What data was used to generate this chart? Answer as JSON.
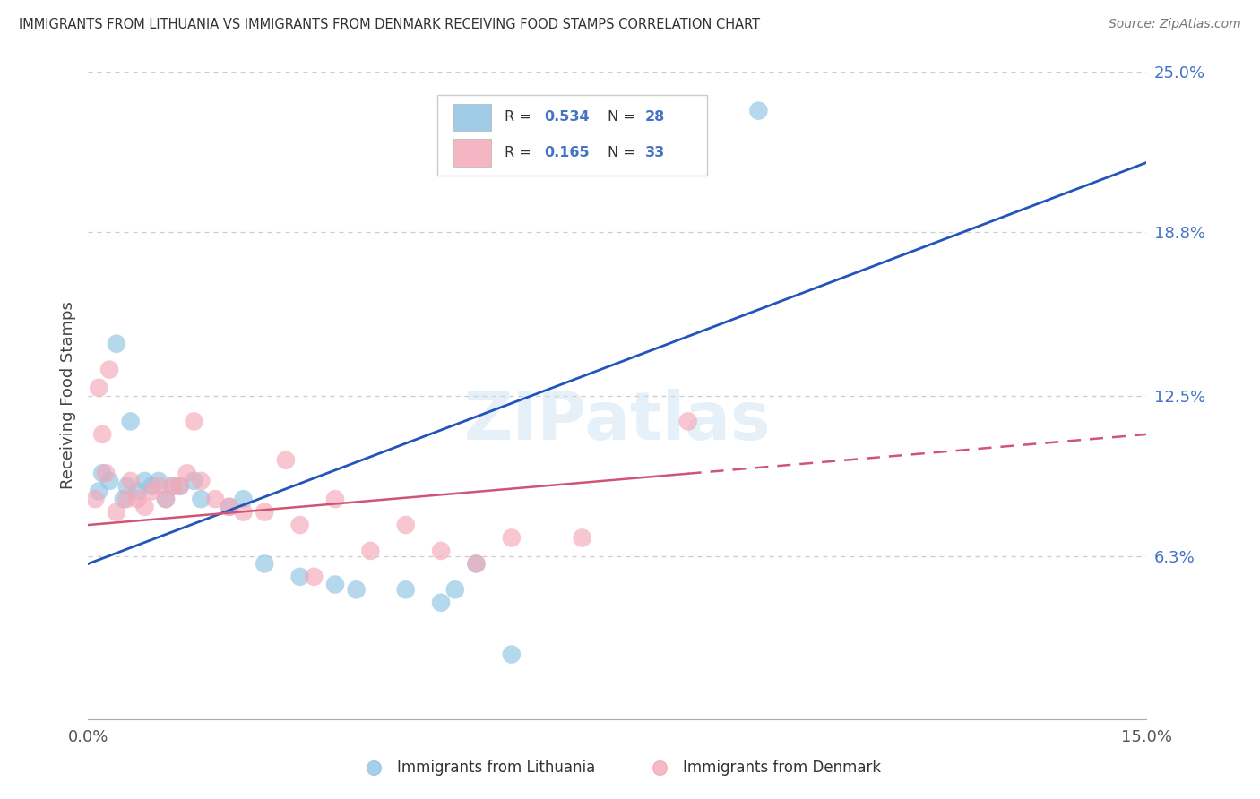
{
  "title": "IMMIGRANTS FROM LITHUANIA VS IMMIGRANTS FROM DENMARK RECEIVING FOOD STAMPS CORRELATION CHART",
  "source": "Source: ZipAtlas.com",
  "ylabel": "Receiving Food Stamps",
  "x_min": 0.0,
  "x_max": 15.0,
  "y_min": 0.0,
  "y_max": 25.0,
  "y_ticks": [
    6.3,
    12.5,
    18.8,
    25.0
  ],
  "legend_r1": "0.534",
  "legend_n1": "28",
  "legend_r2": "0.165",
  "legend_n2": "33",
  "blue_color": "#90c4e4",
  "pink_color": "#f5a8b8",
  "blue_line_color": "#2255bb",
  "pink_line_color": "#d05575",
  "blue_line_x0": 0,
  "blue_line_y0": 6.0,
  "blue_line_x1": 15,
  "blue_line_y1": 21.5,
  "pink_line_x0": 0,
  "pink_line_y0": 7.5,
  "pink_line_x1": 15,
  "pink_line_y1": 11.0,
  "pink_dash_start_x": 8.5,
  "watermark_text": "ZIPatlas",
  "blue_points_x": [
    0.15,
    0.2,
    0.3,
    0.4,
    0.5,
    0.55,
    0.6,
    0.7,
    0.8,
    0.9,
    1.0,
    1.1,
    1.2,
    1.3,
    1.5,
    1.6,
    2.0,
    2.2,
    2.5,
    3.0,
    3.5,
    3.8,
    4.5,
    5.0,
    5.2,
    5.5,
    6.0,
    9.5
  ],
  "blue_points_y": [
    8.8,
    9.5,
    9.2,
    14.5,
    8.5,
    9.0,
    11.5,
    8.8,
    9.2,
    9.0,
    9.2,
    8.5,
    9.0,
    9.0,
    9.2,
    8.5,
    8.2,
    8.5,
    6.0,
    5.5,
    5.2,
    5.0,
    5.0,
    4.5,
    5.0,
    6.0,
    2.5,
    23.5
  ],
  "pink_points_x": [
    0.1,
    0.15,
    0.2,
    0.3,
    0.4,
    0.55,
    0.6,
    0.7,
    0.8,
    0.9,
    1.0,
    1.1,
    1.2,
    1.3,
    1.4,
    1.5,
    1.6,
    1.8,
    2.0,
    2.2,
    2.5,
    2.8,
    3.0,
    3.2,
    3.5,
    4.0,
    4.5,
    5.0,
    5.5,
    6.0,
    7.0,
    8.5,
    0.25
  ],
  "pink_points_y": [
    8.5,
    12.8,
    11.0,
    13.5,
    8.0,
    8.5,
    9.2,
    8.5,
    8.2,
    8.8,
    9.0,
    8.5,
    9.0,
    9.0,
    9.5,
    11.5,
    9.2,
    8.5,
    8.2,
    8.0,
    8.0,
    10.0,
    7.5,
    5.5,
    8.5,
    6.5,
    7.5,
    6.5,
    6.0,
    7.0,
    7.0,
    11.5,
    9.5
  ]
}
